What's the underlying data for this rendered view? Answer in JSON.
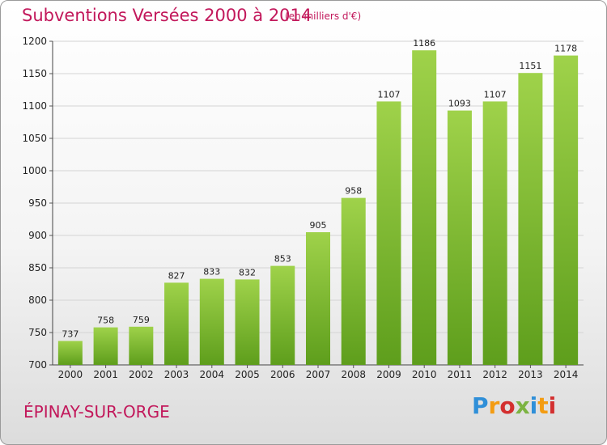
{
  "header": {
    "title": "Subventions Versées 2000 à 2014",
    "unit_note": "(en milliers d'€)"
  },
  "footer": {
    "city": "ÉPINAY-SUR-ORGE",
    "brand": "Proxiti"
  },
  "colors": {
    "title": "#c2185b",
    "bar_top": "#9fd24a",
    "bar_bottom": "#5e9e1c"
  },
  "chart_data": {
    "type": "bar",
    "categories": [
      "2000",
      "2001",
      "2002",
      "2003",
      "2004",
      "2005",
      "2006",
      "2007",
      "2008",
      "2009",
      "2010",
      "2011",
      "2012",
      "2013",
      "2014"
    ],
    "values": [
      737,
      758,
      759,
      827,
      833,
      832,
      853,
      905,
      958,
      1107,
      1186,
      1093,
      1107,
      1151,
      1178
    ],
    "ylim": [
      700,
      1200
    ],
    "yticks": [
      700,
      750,
      800,
      850,
      900,
      950,
      1000,
      1050,
      1100,
      1150,
      1200
    ],
    "grid": true,
    "data_labels": true
  }
}
